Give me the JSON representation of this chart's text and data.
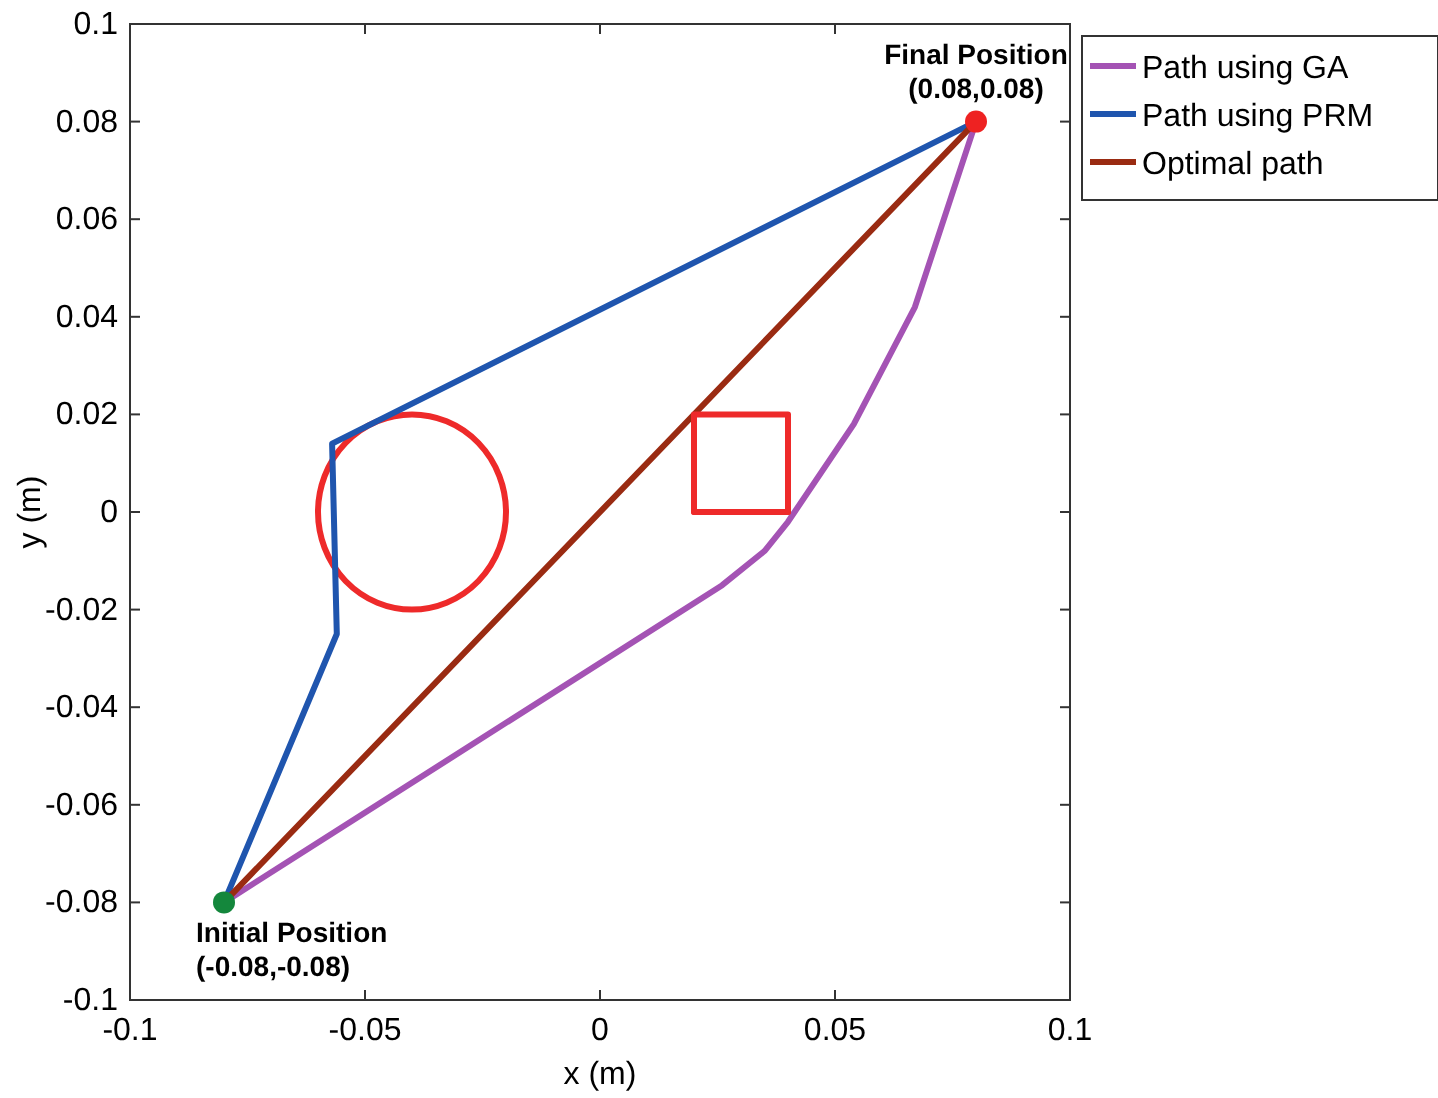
{
  "chart_data": {
    "type": "line",
    "xlabel": "x (m)",
    "ylabel": "y (m)",
    "xlim": [
      -0.1,
      0.1
    ],
    "ylim": [
      -0.1,
      0.1
    ],
    "xticks": [
      -0.1,
      -0.05,
      0,
      0.05,
      0.1
    ],
    "yticks": [
      -0.1,
      -0.08,
      -0.06,
      -0.04,
      -0.02,
      0,
      0.02,
      0.04,
      0.06,
      0.08,
      0.1
    ],
    "grid": false,
    "legend": "top right",
    "line_style": "solid",
    "marker": "none",
    "series": [
      {
        "name": "Path using GA",
        "color": "#a453b4",
        "x": [
          -0.08,
          0.026,
          0.035,
          0.04,
          0.054,
          0.067,
          0.08
        ],
        "values": [
          -0.08,
          -0.015,
          -0.008,
          -0.002,
          0.018,
          0.042,
          0.08
        ]
      },
      {
        "name": "Path using PRM",
        "color": "#1f55ae",
        "x": [
          -0.08,
          -0.056,
          -0.057,
          0.08
        ],
        "values": [
          -0.08,
          -0.025,
          0.014,
          0.08
        ]
      },
      {
        "name": "Optimal path",
        "color": "#9a2b12",
        "x": [
          -0.08,
          0.08
        ],
        "values": [
          -0.08,
          0.08
        ]
      },
      {
        "color": "#ee2a2a",
        "x": [
          0.02,
          0.02,
          0.04,
          0.04
        ],
        "values": [
          0,
          0.02,
          0.02,
          0
        ]
      },
      {
        "color": "#ee2a2a",
        "x": [
          0.02,
          0.04
        ],
        "values": [
          0,
          0
        ]
      },
      {
        "type": "scatter",
        "marker": "circle",
        "x": [
          -0.08,
          0.08
        ],
        "values": [
          -0.08,
          0.08
        ],
        "colors": [
          "#14873c",
          "#ee2222"
        ]
      }
    ],
    "annotations": [
      {
        "text": "Initial Position\n(-0.08,-0.08)",
        "x": -0.08,
        "y": -0.08
      },
      {
        "text": "Final Position\n(0.08,0.08)",
        "x": 0.08,
        "y": 0.08
      }
    ]
  }
}
